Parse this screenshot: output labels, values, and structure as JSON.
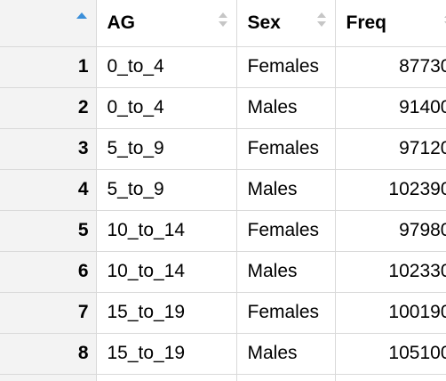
{
  "table": {
    "columns": [
      {
        "label": "AG",
        "icon": "sort-icon"
      },
      {
        "label": "Sex",
        "icon": "sort-icon"
      },
      {
        "label": "Freq",
        "icon": "sort-icon"
      }
    ],
    "row_header": {
      "icon": "sort-ascending-icon",
      "icon_color": "#3b8fd9"
    },
    "rows": [
      {
        "index": "1",
        "AG": "0_to_4",
        "Sex": "Females",
        "Freq": "87730"
      },
      {
        "index": "2",
        "AG": "0_to_4",
        "Sex": "Males",
        "Freq": "91400"
      },
      {
        "index": "3",
        "AG": "5_to_9",
        "Sex": "Females",
        "Freq": "97120"
      },
      {
        "index": "4",
        "AG": "5_to_9",
        "Sex": "Males",
        "Freq": "102390"
      },
      {
        "index": "5",
        "AG": "10_to_14",
        "Sex": "Females",
        "Freq": "97980"
      },
      {
        "index": "6",
        "AG": "10_to_14",
        "Sex": "Males",
        "Freq": "102330"
      },
      {
        "index": "7",
        "AG": "15_to_19",
        "Sex": "Females",
        "Freq": "100190"
      },
      {
        "index": "8",
        "AG": "15_to_19",
        "Sex": "Males",
        "Freq": "105100"
      }
    ]
  }
}
